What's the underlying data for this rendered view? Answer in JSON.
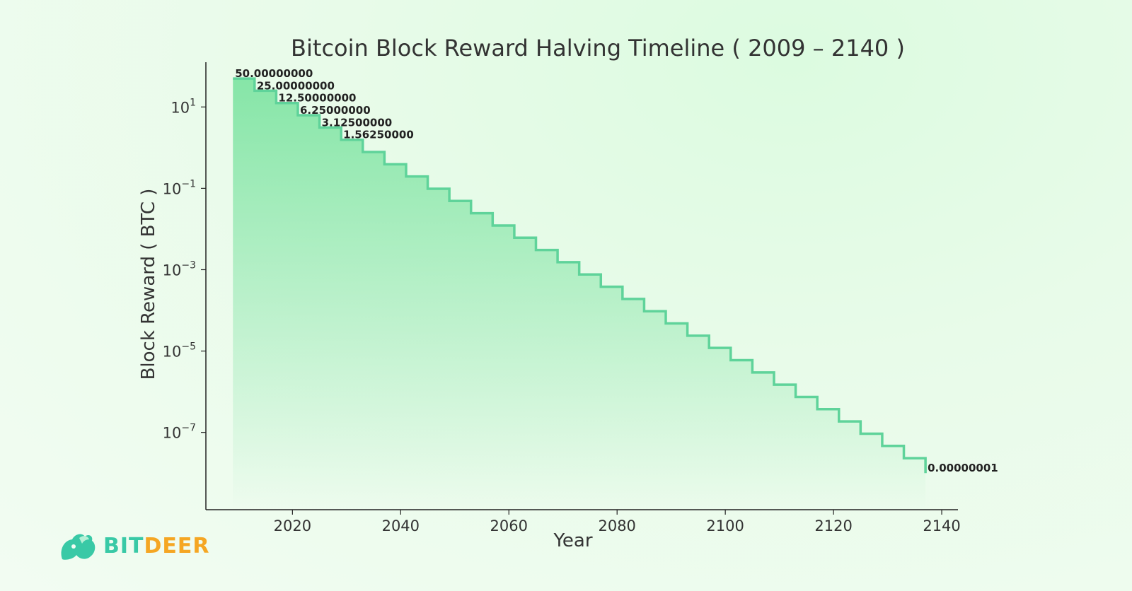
{
  "chart_data": {
    "type": "line",
    "title": "Bitcoin Block Reward Halving Timeline ( 2009 – 2140 )",
    "xlabel": "Year",
    "ylabel": "Block Reward ( BTC )",
    "yscale": "log",
    "xlim": [
      2004,
      2143
    ],
    "ylim_log10": [
      -8.9,
      2.1
    ],
    "x_ticks": [
      2020,
      2040,
      2060,
      2080,
      2100,
      2120,
      2140
    ],
    "y_ticks": [
      {
        "base": "10",
        "exp": "1",
        "value": 10
      },
      {
        "base": "10",
        "exp": "−1",
        "value": 0.1
      },
      {
        "base": "10",
        "exp": "−3",
        "value": 0.001
      },
      {
        "base": "10",
        "exp": "−5",
        "value": 1e-05
      },
      {
        "base": "10",
        "exp": "−7",
        "value": 1e-07
      }
    ],
    "step": "post",
    "x": [
      2009,
      2013,
      2017,
      2021,
      2025,
      2029,
      2033,
      2037,
      2041,
      2045,
      2049,
      2053,
      2057,
      2061,
      2065,
      2069,
      2073,
      2077,
      2081,
      2085,
      2089,
      2093,
      2097,
      2101,
      2105,
      2109,
      2113,
      2117,
      2121,
      2125,
      2129,
      2133,
      2137
    ],
    "series": [
      {
        "values": [
          50,
          25,
          12.5,
          6.25,
          3.125,
          1.5625,
          0.78125,
          0.390625,
          0.1953125,
          0.09765625,
          0.048828125,
          0.0244140625,
          0.01220703125,
          0.006103515625,
          0.0030517578125,
          0.00152587890625,
          0.000762939453125,
          0.0003814697265625,
          0.00019073486328125,
          9.5367431640625e-05,
          4.76837158203125e-05,
          2.384185791015625e-05,
          1.1920928955078125e-05,
          5.9604644775390625e-06,
          2.9802322387695312e-06,
          1.4901161193847656e-06,
          7.450580596923828e-07,
          3.725290298461914e-07,
          1.862645149230957e-07,
          9.313225746154785e-08,
          4.6566128730773926e-08,
          2.3283064365386963e-08,
          1e-08
        ]
      }
    ],
    "annotations": [
      {
        "x": 2009,
        "y": 50,
        "text": "50.00000000"
      },
      {
        "x": 2013,
        "y": 25,
        "text": "25.00000000"
      },
      {
        "x": 2017,
        "y": 12.5,
        "text": "12.50000000"
      },
      {
        "x": 2021,
        "y": 6.25,
        "text": "6.25000000"
      },
      {
        "x": 2025,
        "y": 3.125,
        "text": "3.12500000"
      },
      {
        "x": 2029,
        "y": 1.5625,
        "text": "1.56250000"
      },
      {
        "x": 2137,
        "y": 1e-08,
        "text": "0.00000001"
      }
    ],
    "line_color": "#5fd39a",
    "fill_color": "#7be3a0",
    "grid": false
  },
  "brand": {
    "name_part1": "BIT",
    "name_part2": "DEER",
    "color_part1": "#39c9a6",
    "color_part2": "#f5a623"
  }
}
